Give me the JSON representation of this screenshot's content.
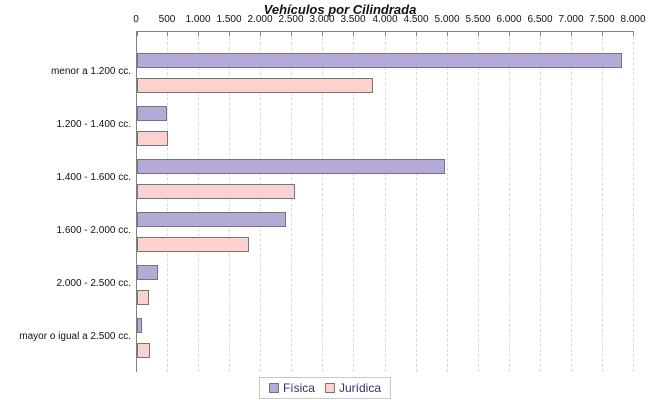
{
  "chart_data": {
    "type": "bar",
    "orientation": "horizontal",
    "title": "Vehículos por Cilindrada",
    "categories": [
      "menor a 1.200 cc.",
      "1.200 - 1.400 cc.",
      "1.400 - 1.600 cc.",
      "1.600 - 2.000 cc.",
      "2.000 - 2.500 cc.",
      "mayor o igual a 2.500 cc."
    ],
    "series": [
      {
        "name": "Física",
        "color": "#b5aad7",
        "values": [
          7800,
          480,
          4950,
          2400,
          340,
          80
        ]
      },
      {
        "name": "Jurídica",
        "color": "#fdd1ce",
        "values": [
          3800,
          500,
          2550,
          1800,
          200,
          210
        ]
      }
    ],
    "xlim": [
      0,
      8000
    ],
    "x_tick_interval": 500,
    "x_tick_labels": [
      "0",
      "500",
      "1.000",
      "1.500",
      "2.000",
      "2.500",
      "3.000",
      "3.500",
      "4.000",
      "4.500",
      "5.000",
      "5.500",
      "6.000",
      "6.500",
      "7.000",
      "7.500",
      "8.000"
    ],
    "grid": "vertical-dashed",
    "legend_position": "bottom-center",
    "colors": {
      "axis": "#808080",
      "gridline": "#d9d9d9",
      "bar_border": "#757575",
      "legend_text": "#333366",
      "title_text": "#111111"
    }
  }
}
